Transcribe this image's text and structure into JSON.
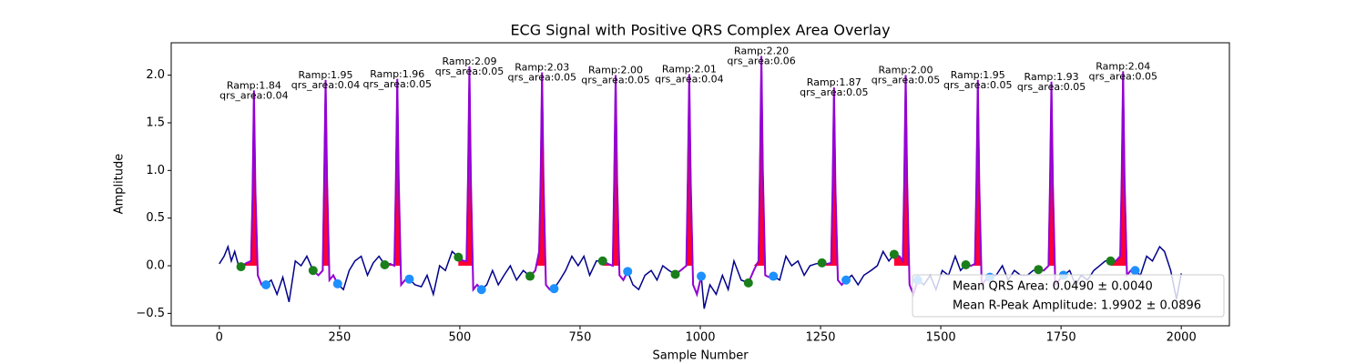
{
  "chart_data": {
    "type": "ecg",
    "title": "ECG Signal with Positive QRS Complex Area Overlay",
    "xlabel": "Sample Number",
    "ylabel": "Amplitude",
    "xlim": [
      -100,
      2100
    ],
    "ylim": [
      -0.63,
      2.34
    ],
    "xticks": [
      0,
      250,
      500,
      750,
      1000,
      1250,
      1500,
      1750,
      2000
    ],
    "yticks": [
      {
        "value": -0.5,
        "label": "−0.5"
      },
      {
        "value": 0,
        "label": "0.0"
      },
      0.5,
      {
        "value": 1,
        "label": "1.0"
      },
      1.5,
      {
        "value": 2,
        "label": "2.0"
      }
    ],
    "signal": {
      "color": "#00008b",
      "qrs_color": "#9400d3",
      "area_color": "#ff0033",
      "x": [
        0,
        10,
        18,
        25,
        32,
        40,
        45,
        57,
        66,
        69,
        72,
        75,
        80,
        88,
        97,
        108,
        120,
        132,
        145,
        158,
        170,
        182,
        195,
        206,
        215,
        218,
        221,
        224,
        229,
        237,
        246,
        258,
        270,
        282,
        295,
        308,
        320,
        332,
        344,
        355,
        364,
        367,
        370,
        373,
        378,
        386,
        395,
        407,
        420,
        432,
        445,
        458,
        470,
        484,
        497,
        508,
        514,
        517,
        520,
        523,
        528,
        536,
        545,
        556,
        568,
        580,
        592,
        605,
        618,
        632,
        646,
        657,
        665,
        668,
        671,
        674,
        679,
        687,
        696,
        708,
        720,
        733,
        746,
        758,
        770,
        784,
        797,
        808,
        818,
        821,
        824,
        827,
        832,
        840,
        849,
        860,
        872,
        885,
        898,
        910,
        922,
        935,
        948,
        959,
        971,
        974,
        977,
        980,
        985,
        993,
        1002,
        1008,
        1020,
        1033,
        1046,
        1058,
        1070,
        1085,
        1100,
        1111,
        1121,
        1124,
        1127,
        1130,
        1135,
        1143,
        1152,
        1165,
        1178,
        1190,
        1203,
        1216,
        1228,
        1240,
        1253,
        1264,
        1272,
        1275,
        1278,
        1281,
        1286,
        1294,
        1303,
        1315,
        1328,
        1340,
        1355,
        1368,
        1380,
        1392,
        1403,
        1414,
        1421,
        1424,
        1427,
        1430,
        1435,
        1443,
        1452,
        1465,
        1478,
        1490,
        1503,
        1516,
        1530,
        1541,
        1552,
        1563,
        1571,
        1574,
        1577,
        1580,
        1585,
        1593,
        1602,
        1615,
        1628,
        1640,
        1653,
        1666,
        1680,
        1692,
        1703,
        1714,
        1724,
        1727,
        1730,
        1733,
        1738,
        1746,
        1755,
        1768,
        1780,
        1792,
        1805,
        1818,
        1830,
        1842,
        1853,
        1864,
        1873,
        1876,
        1879,
        1882,
        1887,
        1895,
        1904,
        1915,
        1928,
        1940,
        1955,
        1965,
        1978,
        1990,
        2000
      ],
      "values": [
        0.02,
        0.1,
        0.2,
        0.05,
        0.15,
        0.0,
        -0.01,
        0.03,
        0.05,
        0.7,
        1.84,
        0.8,
        -0.1,
        -0.2,
        -0.2,
        -0.15,
        -0.3,
        -0.12,
        -0.38,
        0.05,
        0.0,
        0.1,
        -0.05,
        -0.1,
        -0.05,
        0.9,
        1.95,
        0.9,
        -0.15,
        -0.1,
        -0.19,
        -0.25,
        -0.05,
        0.05,
        0.1,
        -0.1,
        0.03,
        0.1,
        0.01,
        0.02,
        0.0,
        0.85,
        1.96,
        0.9,
        -0.2,
        -0.15,
        -0.14,
        -0.2,
        -0.22,
        -0.1,
        -0.3,
        0.0,
        -0.05,
        0.15,
        0.09,
        0.05,
        0.05,
        0.9,
        2.09,
        0.9,
        -0.25,
        -0.2,
        -0.25,
        -0.2,
        -0.05,
        -0.2,
        -0.1,
        0.0,
        -0.15,
        -0.05,
        -0.11,
        -0.05,
        0.15,
        0.9,
        2.03,
        0.9,
        -0.2,
        -0.25,
        -0.24,
        -0.15,
        -0.05,
        0.1,
        0.0,
        0.1,
        -0.1,
        0.05,
        0.05,
        0.02,
        0.0,
        0.9,
        2.0,
        0.9,
        -0.1,
        -0.15,
        -0.06,
        -0.2,
        -0.25,
        -0.1,
        -0.05,
        -0.15,
        0.0,
        -0.05,
        -0.09,
        -0.05,
        0.0,
        0.9,
        2.01,
        0.9,
        -0.2,
        -0.3,
        -0.11,
        -0.45,
        -0.2,
        -0.3,
        -0.1,
        -0.25,
        0.05,
        -0.15,
        -0.18,
        -0.05,
        0.05,
        1.0,
        2.2,
        1.0,
        -0.1,
        -0.12,
        -0.11,
        -0.15,
        0.1,
        0.0,
        0.05,
        -0.1,
        0.0,
        0.02,
        0.03,
        0.02,
        0.03,
        0.8,
        1.87,
        0.8,
        -0.15,
        -0.2,
        -0.15,
        -0.1,
        -0.2,
        -0.1,
        -0.05,
        0.0,
        0.15,
        0.05,
        0.12,
        0.1,
        0.05,
        0.9,
        2.0,
        0.9,
        -0.2,
        -0.3,
        -0.15,
        -0.2,
        -0.1,
        -0.25,
        -0.05,
        -0.1,
        0.1,
        -0.05,
        0.01,
        0.0,
        0.02,
        0.85,
        1.95,
        0.85,
        -0.2,
        -0.15,
        -0.12,
        -0.1,
        0.0,
        -0.15,
        -0.05,
        -0.1,
        -0.1,
        -0.05,
        -0.04,
        -0.05,
        0.0,
        0.85,
        1.93,
        0.85,
        -0.2,
        -0.15,
        -0.1,
        -0.05,
        -0.2,
        -0.1,
        -0.15,
        -0.05,
        0.0,
        0.05,
        0.05,
        0.05,
        0.1,
        0.9,
        2.04,
        0.9,
        -0.1,
        -0.05,
        -0.05,
        -0.1,
        0.1,
        0.05,
        0.2,
        0.15,
        -0.05,
        -0.35,
        -0.08
      ]
    },
    "onsets": {
      "color": "#1a7f1a",
      "x": [
        45,
        195,
        344,
        497,
        646,
        797,
        948,
        1100,
        1253,
        1403,
        1552,
        1703,
        1853
      ],
      "values": [
        -0.01,
        -0.05,
        0.01,
        0.09,
        -0.11,
        0.05,
        -0.09,
        -0.18,
        0.03,
        0.12,
        0.01,
        -0.04,
        0.05
      ]
    },
    "offsets": {
      "color": "#1e90ff",
      "x": [
        97,
        246,
        395,
        545,
        696,
        849,
        1002,
        1152,
        1303,
        1452,
        1602,
        1755,
        1904
      ],
      "values": [
        -0.2,
        -0.19,
        -0.14,
        -0.25,
        -0.24,
        -0.06,
        -0.11,
        -0.11,
        -0.15,
        -0.15,
        -0.12,
        -0.1,
        -0.05
      ]
    },
    "annotations": [
      {
        "x": 72,
        "y": 1.84,
        "lines": [
          "Ramp:1.84",
          "qrs_area:0.04"
        ]
      },
      {
        "x": 221,
        "y": 1.95,
        "lines": [
          "Ramp:1.95",
          "qrs_area:0.04"
        ]
      },
      {
        "x": 370,
        "y": 1.96,
        "lines": [
          "Ramp:1.96",
          "qrs_area:0.05"
        ]
      },
      {
        "x": 520,
        "y": 2.09,
        "lines": [
          "Ramp:2.09",
          "qrs_area:0.05"
        ]
      },
      {
        "x": 671,
        "y": 2.03,
        "lines": [
          "Ramp:2.03",
          "qrs_area:0.05"
        ]
      },
      {
        "x": 824,
        "y": 2.0,
        "lines": [
          "Ramp:2.00",
          "qrs_area:0.05"
        ]
      },
      {
        "x": 977,
        "y": 2.01,
        "lines": [
          "Ramp:2.01",
          "qrs_area:0.04"
        ]
      },
      {
        "x": 1127,
        "y": 2.2,
        "lines": [
          "Ramp:2.20",
          "qrs_area:0.06"
        ]
      },
      {
        "x": 1278,
        "y": 1.87,
        "lines": [
          "Ramp:1.87",
          "qrs_area:0.05"
        ]
      },
      {
        "x": 1427,
        "y": 2.0,
        "lines": [
          "Ramp:2.00",
          "qrs_area:0.05"
        ]
      },
      {
        "x": 1577,
        "y": 1.95,
        "lines": [
          "Ramp:1.95",
          "qrs_area:0.05"
        ]
      },
      {
        "x": 1730,
        "y": 1.93,
        "lines": [
          "Ramp:1.93",
          "qrs_area:0.05"
        ]
      },
      {
        "x": 1879,
        "y": 2.04,
        "lines": [
          "Ramp:2.04",
          "qrs_area:0.05"
        ]
      }
    ],
    "legend_texts": [
      "Mean QRS Area: 0.0490 ± 0.0040",
      "Mean R-Peak Amplitude: 1.9902 ± 0.0896"
    ],
    "legend": "lower right"
  }
}
